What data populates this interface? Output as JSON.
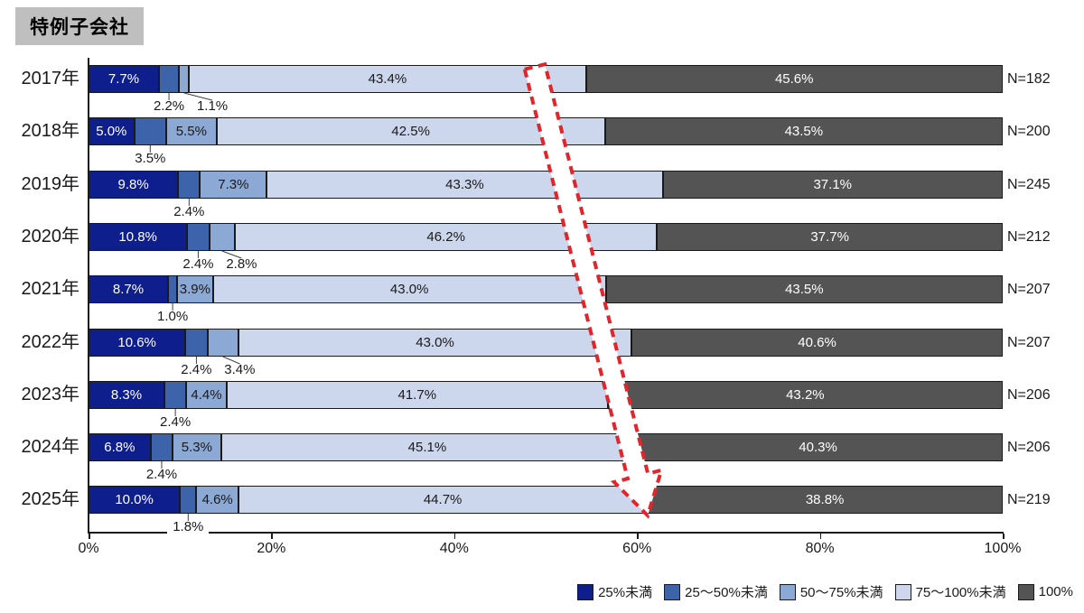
{
  "title_badge": "特例子会社",
  "chart_data": {
    "type": "bar",
    "stacked": true,
    "orientation": "horizontal",
    "title": "特例子会社",
    "categories": [
      "2017年",
      "2018年",
      "2019年",
      "2020年",
      "2021年",
      "2022年",
      "2023年",
      "2024年",
      "2025年"
    ],
    "sample_sizes": [
      "N=182",
      "N=200",
      "N=245",
      "N=212",
      "N=207",
      "N=207",
      "N=206",
      "N=206",
      "N=219"
    ],
    "series": [
      {
        "name": "25%未満",
        "color": "#0e1f8d",
        "text_color": "#ffffff",
        "values": [
          7.7,
          5.0,
          9.8,
          10.8,
          8.7,
          10.6,
          8.3,
          6.8,
          10.0
        ]
      },
      {
        "name": "25〜50%未満",
        "color": "#3d64ab",
        "text_color": "#1a1a1a",
        "values": [
          2.2,
          3.5,
          2.4,
          2.4,
          1.0,
          2.4,
          2.4,
          2.4,
          1.8
        ]
      },
      {
        "name": "50〜75%未満",
        "color": "#8ca8d5",
        "text_color": "#1a1a1a",
        "values": [
          1.1,
          5.5,
          7.3,
          2.8,
          3.9,
          3.4,
          4.4,
          5.3,
          4.6
        ]
      },
      {
        "name": "75〜100%未満",
        "color": "#ccd6ec",
        "text_color": "#1a1a1a",
        "values": [
          43.4,
          42.5,
          43.3,
          46.2,
          43.0,
          43.0,
          41.7,
          45.1,
          44.7
        ]
      },
      {
        "name": "100%",
        "color": "#545454",
        "text_color": "#ffffff",
        "values": [
          45.6,
          43.5,
          37.1,
          37.7,
          43.5,
          40.6,
          43.2,
          40.3,
          38.8
        ]
      }
    ],
    "value_suffix": "%",
    "x_ticks": [
      "0%",
      "20%",
      "40%",
      "60%",
      "80%",
      "100%"
    ],
    "xlim": [
      0,
      100
    ],
    "grid": false,
    "legend_position": "bottom-right",
    "annotation": {
      "type": "block-arrow",
      "style": "dashed-outline",
      "color": "#e2242b",
      "fill": "#ffffff",
      "direction": "down-right",
      "meaning": "downward trend across years"
    }
  }
}
